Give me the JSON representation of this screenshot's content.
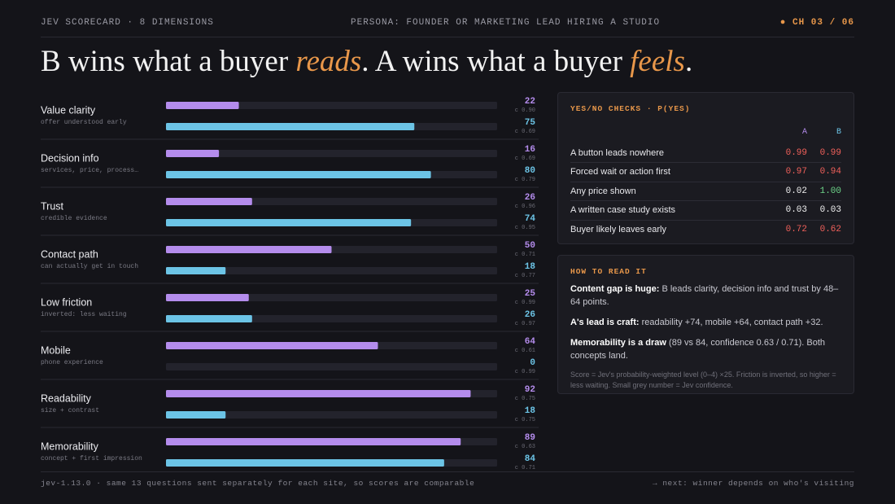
{
  "header": {
    "left": "JEV SCORECARD · 8 DIMENSIONS",
    "center": "PERSONA: FOUNDER OR MARKETING LEAD HIRING A STUDIO",
    "right": "CH 03 / 06"
  },
  "headline": {
    "part1": "B wins what a buyer ",
    "em1": "reads",
    "part2": ". A wins what a buyer ",
    "em2": "feels",
    "part3": "."
  },
  "chart_data": {
    "type": "bar",
    "orientation": "horizontal",
    "categories": [
      "Value clarity",
      "Decision info",
      "Trust",
      "Contact path",
      "Low friction",
      "Mobile",
      "Readability",
      "Memorability"
    ],
    "subtitles": [
      "offer understood early",
      "services, price, process…",
      "credible evidence",
      "can actually get in touch",
      "inverted: less waiting",
      "phone experience",
      "size + contrast",
      "concept + first impression"
    ],
    "xlim": [
      0,
      100
    ],
    "series": [
      {
        "color": "#b48cec",
        "values": [
          22,
          16,
          26,
          50,
          25,
          64,
          92,
          89
        ],
        "confidence_labels": [
          "c 0.90",
          "c 0.69",
          "c 0.96",
          "c 0.71",
          "c 0.99",
          "c 0.61",
          "c 0.75",
          "c 0.63"
        ]
      },
      {
        "color": "#6cc4e6",
        "values": [
          75,
          80,
          74,
          18,
          26,
          0,
          18,
          84
        ],
        "confidence_labels": [
          "c 0.69",
          "c 0.79",
          "c 0.95",
          "c 0.77",
          "c 0.97",
          "c 0.99",
          "c 0.75",
          "c 0.71"
        ]
      }
    ]
  },
  "checks": {
    "title": "YES/NO CHECKS · P(YES)",
    "columns": [
      "A",
      "B"
    ],
    "rows": [
      [
        "A button leads nowhere",
        "0.99",
        "0.99"
      ],
      [
        "Forced wait or action first",
        "0.97",
        "0.94"
      ],
      [
        "Any price shown",
        "0.02",
        "1.00"
      ],
      [
        "A written case study exists",
        "0.03",
        "0.03"
      ],
      [
        "Buyer likely leaves early",
        "0.72",
        "0.62"
      ]
    ]
  },
  "howto": {
    "title": "HOW TO READ IT",
    "items": [
      {
        "lead": "Content gap is huge:",
        "text": " B leads clarity, decision info and trust by 48–64 points."
      },
      {
        "lead": "A's lead is craft:",
        "text": " readability +74, mobile +64, contact path +32."
      },
      {
        "lead": "Memorability is a draw",
        "text": " (89 vs 84, confidence 0.63 / 0.71). Both concepts land."
      }
    ],
    "note": "Score = Jev's probability-weighted level (0–4) ×25. Friction is inverted, so higher = less waiting. Small grey number = Jev confidence."
  },
  "footer": {
    "left": "jev-1.13.0 · same 13 questions sent separately for each site, so scores are comparable",
    "right": "→ next: winner depends on who's visiting"
  }
}
